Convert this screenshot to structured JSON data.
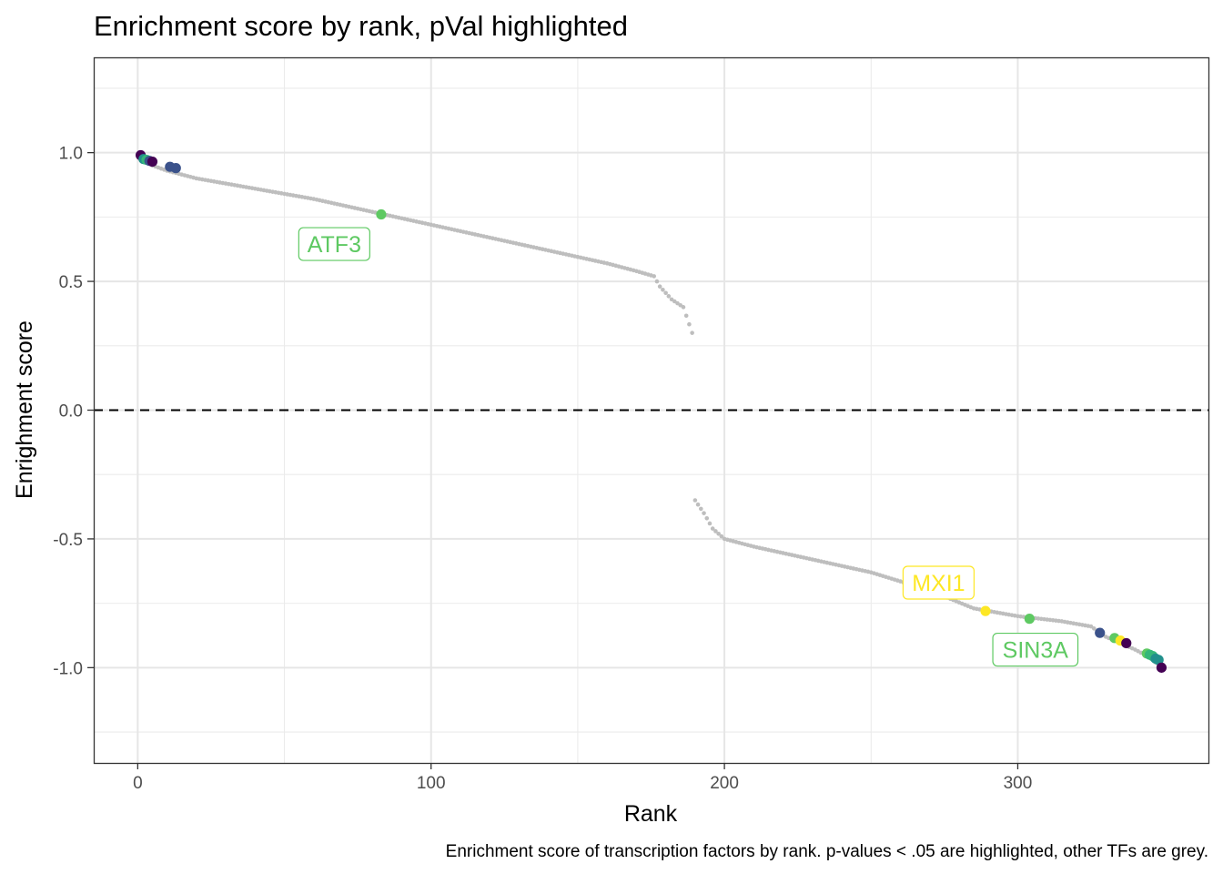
{
  "chart_data": {
    "type": "scatter",
    "title": "Enrichment score by rank, pVal highlighted",
    "xlabel": "Rank",
    "ylabel": "Enrighment score",
    "caption": "Enrichment score of transcription factors by rank. p-values < .05 are highlighted, other TFs are grey.",
    "xlim": [
      -15,
      365
    ],
    "ylim": [
      -1.37,
      1.37
    ],
    "x_ticks": [
      0,
      100,
      200,
      300
    ],
    "x_tick_labels": [
      "0",
      "100",
      "200",
      "300"
    ],
    "y_ticks": [
      -1.0,
      -0.5,
      0.0,
      0.5,
      1.0
    ],
    "y_tick_labels": [
      "-1.0",
      "-0.5",
      "0.0",
      "0.5",
      "1.0"
    ],
    "grid": true,
    "reference_line": {
      "y": 0,
      "style": "dashed"
    },
    "colors": {
      "grey_point": "#bebebe",
      "dark_purple": "#440154",
      "indigo": "#3b528b",
      "teal": "#21908c",
      "green_teal": "#35b779",
      "green": "#5ec962",
      "yellow": "#fde725"
    },
    "background_profile": {
      "positive_branch": [
        [
          1,
          0.99
        ],
        [
          5,
          0.95
        ],
        [
          10,
          0.93
        ],
        [
          20,
          0.9
        ],
        [
          40,
          0.86
        ],
        [
          60,
          0.82
        ],
        [
          80,
          0.77
        ],
        [
          100,
          0.72
        ],
        [
          120,
          0.67
        ],
        [
          140,
          0.62
        ],
        [
          160,
          0.57
        ],
        [
          170,
          0.54
        ],
        [
          176,
          0.52
        ],
        [
          178,
          0.48
        ],
        [
          182,
          0.43
        ],
        [
          186,
          0.4
        ],
        [
          189,
          0.3
        ]
      ],
      "positive_ranks": [
        1,
        189
      ],
      "negative_branch": [
        [
          190,
          -0.35
        ],
        [
          193,
          -0.4
        ],
        [
          196,
          -0.46
        ],
        [
          200,
          -0.5
        ],
        [
          210,
          -0.53
        ],
        [
          230,
          -0.58
        ],
        [
          250,
          -0.63
        ],
        [
          270,
          -0.7
        ],
        [
          285,
          -0.77
        ],
        [
          300,
          -0.8
        ],
        [
          315,
          -0.82
        ],
        [
          325,
          -0.84
        ],
        [
          330,
          -0.88
        ],
        [
          340,
          -0.93
        ],
        [
          345,
          -0.96
        ],
        [
          349,
          -1.0
        ]
      ],
      "negative_ranks": [
        190,
        349
      ]
    },
    "highlighted_points": [
      {
        "x": 1,
        "y": 0.99,
        "color": "#440154"
      },
      {
        "x": 2,
        "y": 0.975,
        "color": "#21908c"
      },
      {
        "x": 3,
        "y": 0.972,
        "color": "#35b779"
      },
      {
        "x": 4,
        "y": 0.968,
        "color": "#3b528b"
      },
      {
        "x": 5,
        "y": 0.965,
        "color": "#440154"
      },
      {
        "x": 11,
        "y": 0.945,
        "color": "#3b528b"
      },
      {
        "x": 13,
        "y": 0.94,
        "color": "#3b528b"
      },
      {
        "x": 83,
        "y": 0.76,
        "color": "#5ec962"
      },
      {
        "x": 289,
        "y": -0.78,
        "color": "#fde725"
      },
      {
        "x": 304,
        "y": -0.81,
        "color": "#5ec962"
      },
      {
        "x": 328,
        "y": -0.865,
        "color": "#3b528b"
      },
      {
        "x": 333,
        "y": -0.885,
        "color": "#5ec962"
      },
      {
        "x": 335,
        "y": -0.895,
        "color": "#fde725"
      },
      {
        "x": 337,
        "y": -0.905,
        "color": "#440154"
      },
      {
        "x": 344,
        "y": -0.945,
        "color": "#5ec962"
      },
      {
        "x": 345,
        "y": -0.95,
        "color": "#35b779"
      },
      {
        "x": 346,
        "y": -0.955,
        "color": "#35b779"
      },
      {
        "x": 347,
        "y": -0.965,
        "color": "#21908c"
      },
      {
        "x": 348,
        "y": -0.97,
        "color": "#21908c"
      },
      {
        "x": 349,
        "y": -1.0,
        "color": "#440154"
      }
    ],
    "annotations": [
      {
        "text": "ATF3",
        "x": 67,
        "y": 0.645,
        "color": "#5ec962"
      },
      {
        "text": "MXI1",
        "x": 273,
        "y": -0.67,
        "color": "#fde725"
      },
      {
        "text": "SIN3A",
        "x": 306,
        "y": -0.93,
        "color": "#5ec962"
      }
    ]
  }
}
